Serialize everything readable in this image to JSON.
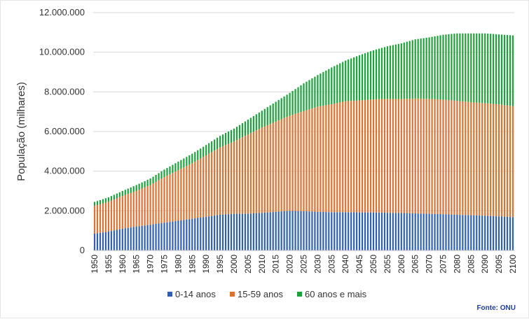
{
  "chart_data": {
    "type": "bar",
    "stacked": true,
    "title": "",
    "xlabel": "",
    "ylabel": "População (milhares)",
    "ylim": [
      0,
      12000000
    ],
    "y_ticks": [
      0,
      2000000,
      4000000,
      6000000,
      8000000,
      10000000,
      12000000
    ],
    "y_tick_labels": [
      "0",
      "2.000.000",
      "4.000.000",
      "6.000.000",
      "8.000.000",
      "10.000.000",
      "12.000.000"
    ],
    "x_tick_labels": [
      "1950",
      "1955",
      "1960",
      "1965",
      "1970",
      "1975",
      "1980",
      "1985",
      "1990",
      "1995",
      "2000",
      "2005",
      "2010",
      "2015",
      "2020",
      "2025",
      "2030",
      "2035",
      "2040",
      "2045",
      "2050",
      "2055",
      "2060",
      "2065",
      "2070",
      "2075",
      "2080",
      "2085",
      "2090",
      "2095",
      "2100"
    ],
    "grid": true,
    "legend_position": "bottom",
    "source": "Fonte: ONU",
    "categories": [
      "1950",
      "1955",
      "1960",
      "1965",
      "1970",
      "1975",
      "1980",
      "1985",
      "1990",
      "1995",
      "2000",
      "2005",
      "2010",
      "2015",
      "2020",
      "2025",
      "2030",
      "2035",
      "2040",
      "2045",
      "2050",
      "2055",
      "2060",
      "2065",
      "2070",
      "2075",
      "2080",
      "2085",
      "2090",
      "2095",
      "2100"
    ],
    "series": [
      {
        "name": "0-14 anos",
        "color": "#2e5fb5",
        "values": [
          850000,
          950000,
          1100000,
          1200000,
          1300000,
          1400000,
          1500000,
          1600000,
          1700000,
          1800000,
          1850000,
          1850000,
          1900000,
          1950000,
          2000000,
          1980000,
          1950000,
          1930000,
          1930000,
          1920000,
          1920000,
          1900000,
          1890000,
          1870000,
          1850000,
          1830000,
          1800000,
          1780000,
          1750000,
          1720000,
          1680000
        ]
      },
      {
        "name": "15-59 anos",
        "color": "#e0702e",
        "values": [
          1400000,
          1500000,
          1650000,
          1800000,
          2000000,
          2300000,
          2550000,
          2800000,
          3100000,
          3400000,
          3650000,
          4000000,
          4300000,
          4550000,
          4800000,
          5050000,
          5300000,
          5450000,
          5600000,
          5650000,
          5700000,
          5750000,
          5750000,
          5800000,
          5800000,
          5780000,
          5750000,
          5700000,
          5680000,
          5650000,
          5600000
        ]
      },
      {
        "name": "60 anos e mais",
        "color": "#1aa33a",
        "values": [
          200000,
          230000,
          250000,
          300000,
          330000,
          380000,
          430000,
          480000,
          520000,
          580000,
          650000,
          750000,
          850000,
          1000000,
          1150000,
          1400000,
          1600000,
          1850000,
          2050000,
          2280000,
          2480000,
          2650000,
          2810000,
          2980000,
          3100000,
          3270000,
          3400000,
          3470000,
          3520000,
          3530000,
          3570000
        ]
      }
    ]
  }
}
